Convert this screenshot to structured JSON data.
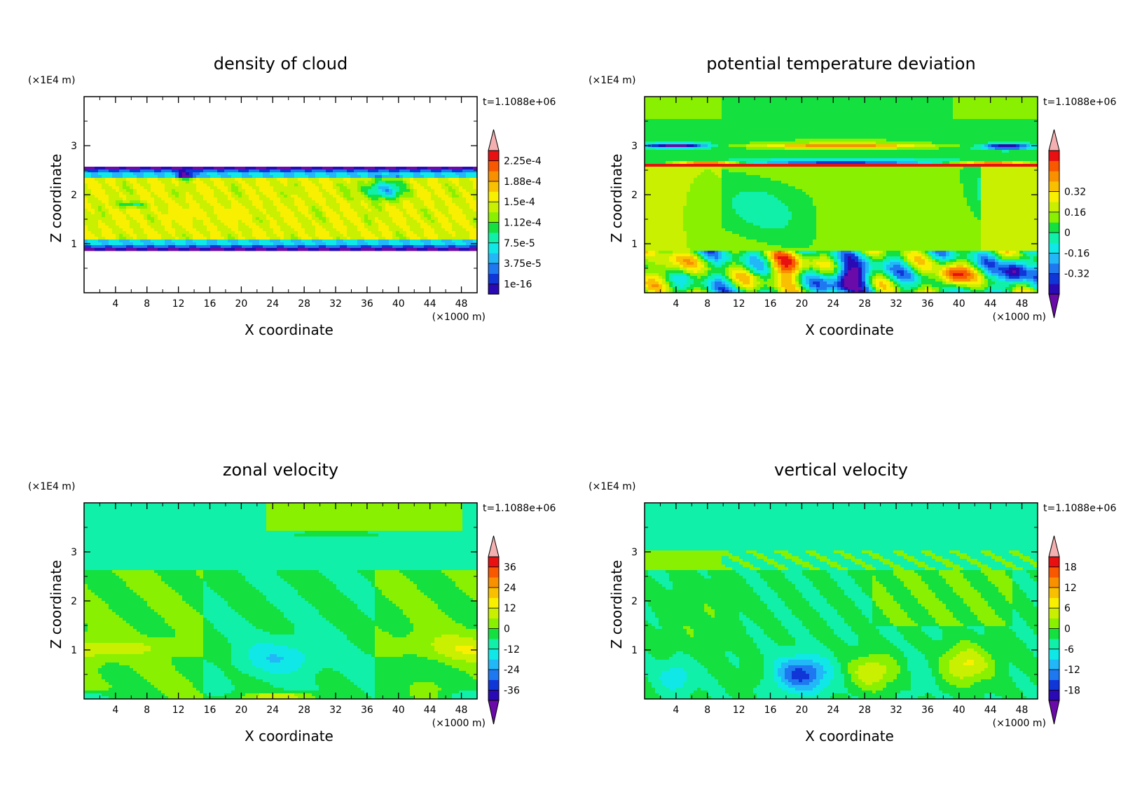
{
  "chart_data": [
    {
      "type": "heatmap",
      "title": "density of cloud",
      "xlabel": "X coordinate",
      "ylabel": "Z coordinate",
      "x_unit": "(×1000 m)",
      "y_unit": "(×1E4 m)",
      "time_label": "t=1.1088e+06",
      "xlim": [
        0,
        50
      ],
      "ylim": [
        0,
        4
      ],
      "x_ticks": [
        "4",
        "8",
        "12",
        "16",
        "20",
        "24",
        "28",
        "32",
        "36",
        "40",
        "44",
        "48"
      ],
      "y_ticks": [
        "1",
        "2",
        "3"
      ],
      "colorbar_levels": [
        "1e-16",
        "3.75e-5",
        "7.5e-5",
        "1.12e-4",
        "1.5e-4",
        "1.88e-4",
        "2.25e-4"
      ],
      "field": "cloud"
    },
    {
      "type": "heatmap",
      "title": "potential temperature deviation",
      "xlabel": "X coordinate",
      "ylabel": "Z coordinate",
      "x_unit": "(×1000 m)",
      "y_unit": "(×1E4 m)",
      "time_label": "t=1.1088e+06",
      "xlim": [
        0,
        50
      ],
      "ylim": [
        0,
        4
      ],
      "x_ticks": [
        "4",
        "8",
        "12",
        "16",
        "20",
        "24",
        "28",
        "32",
        "36",
        "40",
        "44",
        "48"
      ],
      "y_ticks": [
        "1",
        "2",
        "3"
      ],
      "colorbar_levels": [
        "-0.32",
        "-0.16",
        "0",
        "0.16",
        "0.32"
      ],
      "field": "theta"
    },
    {
      "type": "heatmap",
      "title": "zonal velocity",
      "xlabel": "X coordinate",
      "ylabel": "Z coordinate",
      "x_unit": "(×1000 m)",
      "y_unit": "(×1E4 m)",
      "time_label": "t=1.1088e+06",
      "xlim": [
        0,
        50
      ],
      "ylim": [
        0,
        4
      ],
      "x_ticks": [
        "4",
        "8",
        "12",
        "16",
        "20",
        "24",
        "28",
        "32",
        "36",
        "40",
        "44",
        "48"
      ],
      "y_ticks": [
        "1",
        "2",
        "3"
      ],
      "colorbar_levels": [
        "-36",
        "-24",
        "-12",
        "0",
        "12",
        "24",
        "36"
      ],
      "field": "zonal"
    },
    {
      "type": "heatmap",
      "title": "vertical velocity",
      "xlabel": "X coordinate",
      "ylabel": "Z coordinate",
      "x_unit": "(×1000 m)",
      "y_unit": "(×1E4 m)",
      "time_label": "t=1.1088e+06",
      "xlim": [
        0,
        50
      ],
      "ylim": [
        0,
        4
      ],
      "x_ticks": [
        "4",
        "8",
        "12",
        "16",
        "20",
        "24",
        "28",
        "32",
        "36",
        "40",
        "44",
        "48"
      ],
      "y_ticks": [
        "1",
        "2",
        "3"
      ],
      "colorbar_levels": [
        "-18",
        "-12",
        "-6",
        "0",
        "6",
        "12",
        "18"
      ],
      "field": "vertical"
    }
  ]
}
